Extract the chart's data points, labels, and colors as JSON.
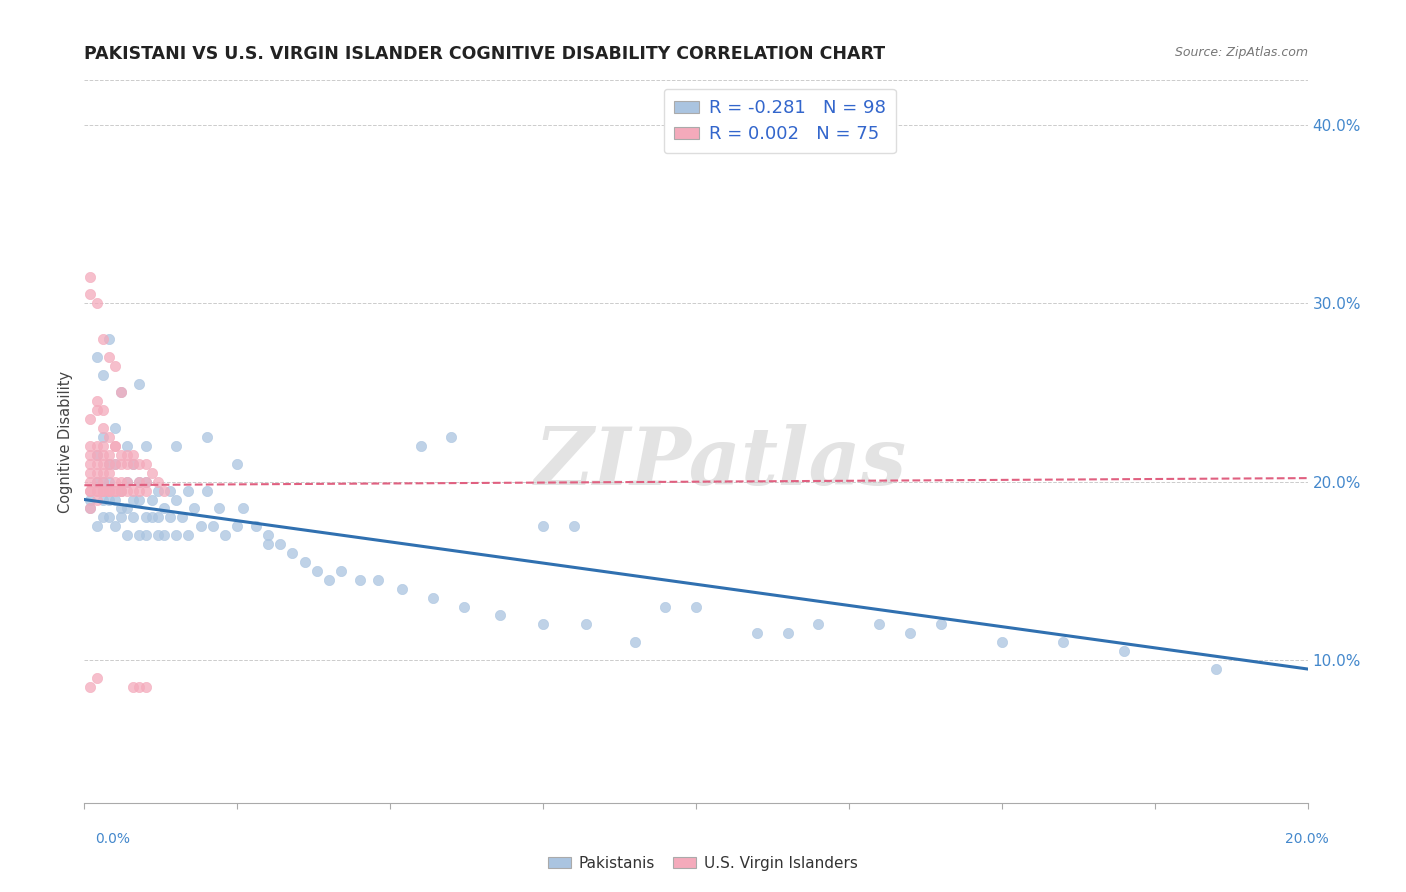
{
  "title": "PAKISTANI VS U.S. VIRGIN ISLANDER COGNITIVE DISABILITY CORRELATION CHART",
  "source": "Source: ZipAtlas.com",
  "ylabel": "Cognitive Disability",
  "right_yticks": [
    0.1,
    0.2,
    0.3,
    0.4
  ],
  "right_yticklabels": [
    "10.0%",
    "20.0%",
    "30.0%",
    "40.0%"
  ],
  "xlim": [
    0.0,
    0.2
  ],
  "ylim": [
    0.02,
    0.425
  ],
  "legend_blue_text": "R = -0.281   N = 98",
  "legend_pink_text": "R = 0.002   N = 75",
  "blue_color": "#aac4e0",
  "pink_color": "#f4aabb",
  "trend_blue_color": "#3070b0",
  "trend_pink_color": "#e06080",
  "watermark": "ZIPatlas",
  "blue_trend_x": [
    0.0,
    0.2
  ],
  "blue_trend_y": [
    0.19,
    0.095
  ],
  "pink_trend_x": [
    0.0,
    0.2
  ],
  "pink_trend_y": [
    0.198,
    0.202
  ],
  "blue_scatter_x": [
    0.001,
    0.001,
    0.002,
    0.002,
    0.002,
    0.003,
    0.003,
    0.003,
    0.003,
    0.004,
    0.004,
    0.004,
    0.004,
    0.005,
    0.005,
    0.005,
    0.006,
    0.006,
    0.006,
    0.007,
    0.007,
    0.007,
    0.008,
    0.008,
    0.008,
    0.009,
    0.009,
    0.009,
    0.01,
    0.01,
    0.01,
    0.011,
    0.011,
    0.012,
    0.012,
    0.013,
    0.013,
    0.014,
    0.014,
    0.015,
    0.015,
    0.016,
    0.017,
    0.017,
    0.018,
    0.019,
    0.02,
    0.021,
    0.022,
    0.023,
    0.025,
    0.026,
    0.028,
    0.03,
    0.032,
    0.034,
    0.036,
    0.038,
    0.04,
    0.042,
    0.045,
    0.048,
    0.052,
    0.057,
    0.062,
    0.068,
    0.075,
    0.082,
    0.09,
    0.1,
    0.11,
    0.12,
    0.135,
    0.15,
    0.002,
    0.003,
    0.004,
    0.005,
    0.006,
    0.007,
    0.009,
    0.01,
    0.012,
    0.015,
    0.02,
    0.025,
    0.03,
    0.055,
    0.075,
    0.095,
    0.115,
    0.14,
    0.16,
    0.185,
    0.06,
    0.08,
    0.13,
    0.17
  ],
  "blue_scatter_y": [
    0.19,
    0.185,
    0.2,
    0.215,
    0.175,
    0.19,
    0.225,
    0.18,
    0.2,
    0.19,
    0.21,
    0.18,
    0.2,
    0.175,
    0.19,
    0.21,
    0.185,
    0.195,
    0.18,
    0.185,
    0.2,
    0.17,
    0.21,
    0.19,
    0.18,
    0.2,
    0.17,
    0.19,
    0.18,
    0.2,
    0.17,
    0.19,
    0.18,
    0.195,
    0.18,
    0.185,
    0.17,
    0.18,
    0.195,
    0.17,
    0.19,
    0.18,
    0.195,
    0.17,
    0.185,
    0.175,
    0.195,
    0.175,
    0.185,
    0.17,
    0.175,
    0.185,
    0.175,
    0.165,
    0.165,
    0.16,
    0.155,
    0.15,
    0.145,
    0.15,
    0.145,
    0.145,
    0.14,
    0.135,
    0.13,
    0.125,
    0.12,
    0.12,
    0.11,
    0.13,
    0.115,
    0.12,
    0.115,
    0.11,
    0.27,
    0.26,
    0.28,
    0.23,
    0.25,
    0.22,
    0.255,
    0.22,
    0.17,
    0.22,
    0.225,
    0.21,
    0.17,
    0.22,
    0.175,
    0.13,
    0.115,
    0.12,
    0.11,
    0.095,
    0.225,
    0.175,
    0.12,
    0.105
  ],
  "pink_scatter_x": [
    0.001,
    0.001,
    0.001,
    0.001,
    0.001,
    0.001,
    0.001,
    0.001,
    0.002,
    0.002,
    0.002,
    0.002,
    0.002,
    0.002,
    0.002,
    0.002,
    0.003,
    0.003,
    0.003,
    0.003,
    0.003,
    0.003,
    0.003,
    0.003,
    0.004,
    0.004,
    0.004,
    0.004,
    0.004,
    0.004,
    0.005,
    0.005,
    0.005,
    0.005,
    0.005,
    0.006,
    0.006,
    0.006,
    0.006,
    0.006,
    0.007,
    0.007,
    0.007,
    0.007,
    0.008,
    0.008,
    0.008,
    0.009,
    0.009,
    0.009,
    0.01,
    0.01,
    0.01,
    0.011,
    0.012,
    0.013,
    0.001,
    0.001,
    0.002,
    0.002,
    0.003,
    0.003,
    0.004,
    0.004,
    0.005,
    0.006,
    0.001,
    0.002,
    0.003,
    0.005,
    0.001,
    0.002,
    0.008,
    0.009,
    0.01
  ],
  "pink_scatter_y": [
    0.195,
    0.21,
    0.2,
    0.22,
    0.195,
    0.205,
    0.215,
    0.185,
    0.2,
    0.21,
    0.195,
    0.205,
    0.22,
    0.195,
    0.215,
    0.19,
    0.2,
    0.215,
    0.195,
    0.205,
    0.22,
    0.195,
    0.21,
    0.195,
    0.205,
    0.195,
    0.21,
    0.195,
    0.215,
    0.195,
    0.2,
    0.195,
    0.21,
    0.195,
    0.22,
    0.2,
    0.195,
    0.215,
    0.195,
    0.21,
    0.21,
    0.2,
    0.215,
    0.195,
    0.21,
    0.195,
    0.215,
    0.2,
    0.195,
    0.21,
    0.2,
    0.195,
    0.21,
    0.205,
    0.2,
    0.195,
    0.315,
    0.305,
    0.3,
    0.245,
    0.28,
    0.24,
    0.27,
    0.225,
    0.265,
    0.25,
    0.235,
    0.24,
    0.23,
    0.22,
    0.085,
    0.09,
    0.085,
    0.085,
    0.085
  ]
}
